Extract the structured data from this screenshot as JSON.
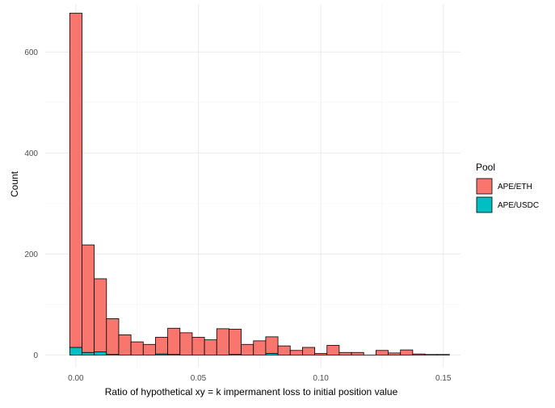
{
  "chart_data": {
    "type": "bar",
    "subtype": "stacked-histogram",
    "xlabel": "Ratio of hypothetical xy = k impermanent loss to initial position value",
    "ylabel": "Count",
    "xlim": [
      -0.0125,
      0.157
    ],
    "ylim": [
      -25,
      695
    ],
    "x_ticks": [
      0.0,
      0.05,
      0.1,
      0.15
    ],
    "x_tick_labels": [
      "0.00",
      "0.05",
      "0.10",
      "0.15"
    ],
    "y_ticks": [
      0,
      200,
      400,
      600
    ],
    "y_tick_labels": [
      "0",
      "200",
      "400",
      "600"
    ],
    "grid": true,
    "legend": {
      "title": "Pool",
      "position": "right"
    },
    "bin_width": 0.005,
    "bin_centers": [
      0.0,
      0.005,
      0.01,
      0.015,
      0.02,
      0.025,
      0.03,
      0.035,
      0.04,
      0.045,
      0.05,
      0.055,
      0.06,
      0.065,
      0.07,
      0.075,
      0.08,
      0.085,
      0.09,
      0.095,
      0.1,
      0.105,
      0.11,
      0.115,
      0.12,
      0.125,
      0.13,
      0.135,
      0.14,
      0.145,
      0.15
    ],
    "series": [
      {
        "name": "APE/ETH",
        "color": "#F8766D",
        "values": [
          662,
          213,
          145,
          71,
          40,
          26,
          21,
          33,
          52,
          44,
          35,
          30,
          52,
          50,
          21,
          28,
          33,
          18,
          9,
          15,
          3,
          19,
          5,
          5,
          0,
          9,
          4,
          10,
          2,
          1,
          1
        ]
      },
      {
        "name": "APE/USDC",
        "color": "#00BFC4",
        "values": [
          15,
          5,
          6,
          1,
          0,
          0,
          0,
          2,
          1,
          0,
          0,
          0,
          0,
          1,
          0,
          0,
          3,
          0,
          0,
          0,
          0,
          0,
          0,
          0,
          0,
          0,
          0,
          0,
          0,
          0,
          0
        ]
      }
    ]
  }
}
